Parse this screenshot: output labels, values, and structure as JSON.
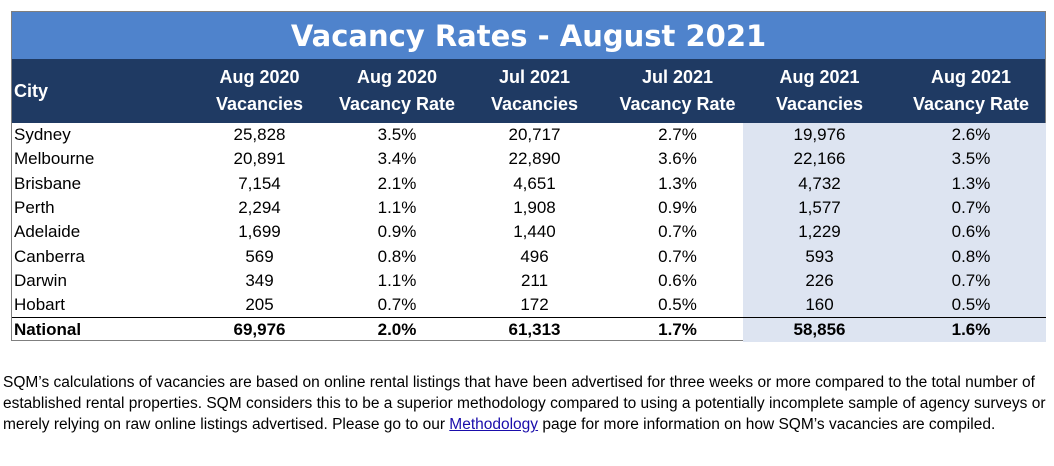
{
  "table": {
    "title": "Vacancy Rates - August 2021",
    "headers": [
      {
        "line1": "City",
        "line2": ""
      },
      {
        "line1": "Aug 2020",
        "line2": "Vacancies"
      },
      {
        "line1": "Aug 2020",
        "line2": "Vacancy Rate"
      },
      {
        "line1": "Jul 2021",
        "line2": "Vacancies"
      },
      {
        "line1": "Jul 2021",
        "line2": "Vacancy Rate"
      },
      {
        "line1": "Aug 2021",
        "line2": "Vacancies"
      },
      {
        "line1": "Aug 2021",
        "line2": "Vacancy Rate"
      }
    ],
    "rows": [
      [
        "Sydney",
        "25,828",
        "3.5%",
        "20,717",
        "2.7%",
        "19,976",
        "2.6%"
      ],
      [
        "Melbourne",
        "20,891",
        "3.4%",
        "22,890",
        "3.6%",
        "22,166",
        "3.5%"
      ],
      [
        "Brisbane",
        "7,154",
        "2.1%",
        "4,651",
        "1.3%",
        "4,732",
        "1.3%"
      ],
      [
        "Perth",
        "2,294",
        "1.1%",
        "1,908",
        "0.9%",
        "1,577",
        "0.7%"
      ],
      [
        "Adelaide",
        "1,699",
        "0.9%",
        "1,440",
        "0.7%",
        "1,229",
        "0.6%"
      ],
      [
        "Canberra",
        "569",
        "0.8%",
        "496",
        "0.7%",
        "593",
        "0.8%"
      ],
      [
        "Darwin",
        "349",
        "1.1%",
        "211",
        "0.6%",
        "226",
        "0.7%"
      ],
      [
        "Hobart",
        "205",
        "0.7%",
        "172",
        "0.5%",
        "160",
        "0.5%"
      ]
    ],
    "national": [
      "National",
      "69,976",
      "2.0%",
      "61,313",
      "1.7%",
      "58,856",
      "1.6%"
    ],
    "colors": {
      "title_bg": "#4f83cc",
      "header_bg": "#1f3a63",
      "highlight_bg": "#dde4f1"
    }
  },
  "note": {
    "text_before_link": "SQM’s calculations of vacancies are based on online rental listings that have been advertised for three weeks or more compared to the total number of established rental properties. SQM considers this to be a superior methodology compared to using a potentially incomplete sample of agency surveys or merely relying on raw online listings advertised. Please go to our ",
    "link_label": "Methodology",
    "text_after_link": " page for more information on how SQM’s vacancies are compiled."
  }
}
